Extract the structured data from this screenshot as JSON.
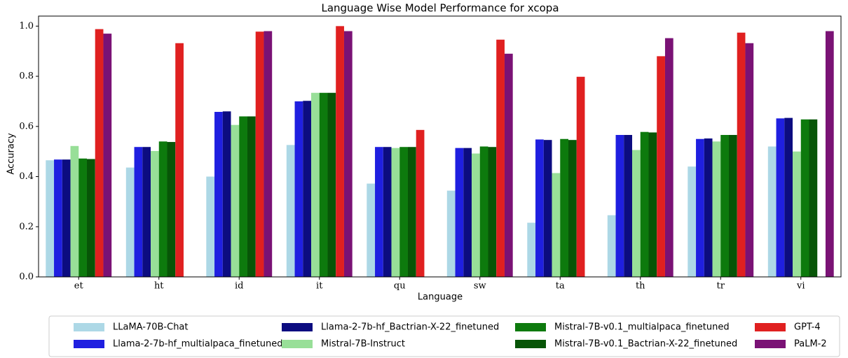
{
  "chart_data": {
    "type": "bar",
    "title": "Language Wise Model Performance for xcopa",
    "x_label": "Language",
    "y_label": "Accuracy",
    "categories": [
      "et",
      "ht",
      "id",
      "it",
      "qu",
      "sw",
      "ta",
      "th",
      "tr",
      "vi"
    ],
    "ylim": [
      0,
      1.04
    ],
    "yticks": [
      {
        "value": 0,
        "label": "0.0"
      },
      0.2,
      0.4,
      0.6,
      0.8,
      {
        "value": 1,
        "label": "1.0"
      }
    ],
    "legend": "bottom",
    "series": [
      {
        "name": "LLaMA-70B-Chat",
        "color": "#add8e6",
        "values": [
          0.465,
          0.436,
          0.4,
          0.526,
          0.372,
          0.344,
          0.216,
          0.246,
          0.44,
          0.52
        ]
      },
      {
        "name": "Llama-2-7b-hf_multialpaca_finetuned",
        "color": "#1f1fe0",
        "values": [
          0.468,
          0.518,
          0.658,
          0.7,
          0.518,
          0.514,
          0.548,
          0.566,
          0.55,
          0.632
        ]
      },
      {
        "name": "Llama-2-7b-hf_Bactrian-X-22_finetuned",
        "color": "#0c0c80",
        "values": [
          0.468,
          0.518,
          0.66,
          0.702,
          0.518,
          0.514,
          0.546,
          0.566,
          0.552,
          0.634
        ]
      },
      {
        "name": "Mistral-7B-Instruct",
        "color": "#98df98",
        "values": [
          0.522,
          0.502,
          0.606,
          0.734,
          0.514,
          0.492,
          0.414,
          0.506,
          0.54,
          0.5
        ]
      },
      {
        "name": "Mistral-7B-v0.1_multialpaca_finetuned",
        "color": "#0d7a0d",
        "values": [
          0.472,
          0.54,
          0.64,
          0.734,
          0.518,
          0.52,
          0.55,
          0.578,
          0.566,
          0.628
        ]
      },
      {
        "name": "Mistral-7B-v0.1_Bactrian-X-22_finetuned",
        "color": "#075507",
        "values": [
          0.47,
          0.538,
          0.64,
          0.734,
          0.518,
          0.518,
          0.546,
          0.576,
          0.566,
          0.628
        ]
      },
      {
        "name": "GPT-4",
        "color": "#e02020",
        "values": [
          0.988,
          0.932,
          0.978,
          1.0,
          0.586,
          0.946,
          0.798,
          0.88,
          0.974,
          0
        ]
      },
      {
        "name": "PaLM-2",
        "color": "#7a1275",
        "values": [
          0.97,
          0,
          0.98,
          0.98,
          0,
          0.89,
          0,
          0.952,
          0.932,
          0.98
        ]
      }
    ]
  }
}
